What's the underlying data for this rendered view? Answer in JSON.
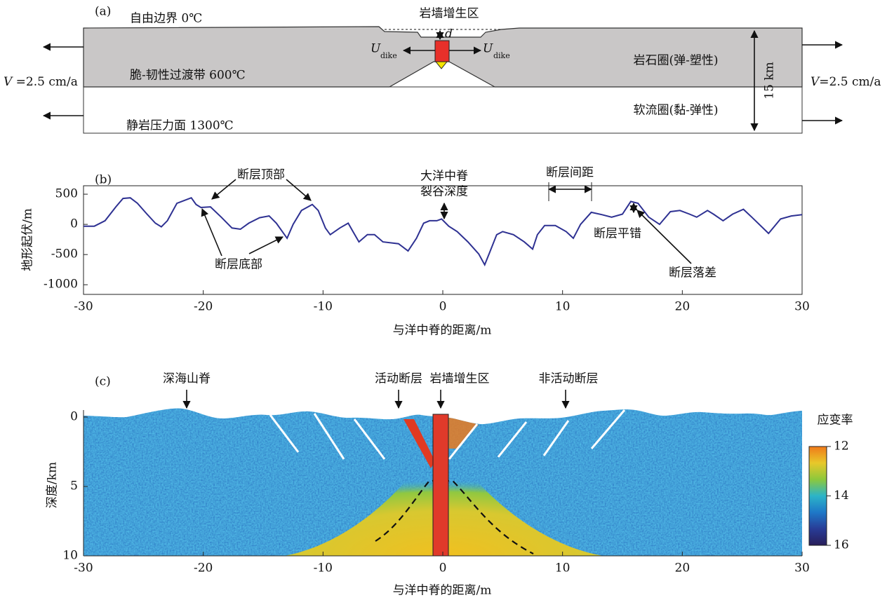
{
  "diagram": {
    "label": "(a)",
    "free_boundary": "自由边界 0℃",
    "dike_zone": "岩墙增生区",
    "d": "d",
    "u_left": "U",
    "u_left_sub": "dike",
    "u_right": "U",
    "u_right_sub": "dike",
    "lithosphere": "岩石圈(弹-塑性)",
    "bdt": "脆-韧性过渡带 600℃",
    "v_left_symbol": "V",
    "v_left_value": " =2.5 cm/a",
    "v_right_symbol": "V",
    "v_right_value": "=2.5 cm/a",
    "thickness": "15 km",
    "asthenosphere": "软流圈(黏-弹性)",
    "lithostatic": "静岩压力面 1300℃"
  },
  "chart_data": [
    {
      "type": "line",
      "panel_label": "(b)",
      "xlabel": "与洋中脊的距离/m",
      "ylabel": "地形起伏/m",
      "xlim": [
        -30,
        30
      ],
      "xticks": [
        -30,
        -20,
        -10,
        0,
        10,
        20,
        30
      ],
      "ylim": [
        -1160,
        640
      ],
      "yticks": [
        -1000,
        -500,
        0,
        500
      ],
      "color": "#2e3192",
      "annotations": [
        "断层顶部",
        "断层底部",
        "大洋中脊",
        "裂谷深度",
        "断层间距",
        "断层平错",
        "断层落差"
      ],
      "x": [
        -30,
        -29.1,
        -28.2,
        -27.3,
        -26.7,
        -26.1,
        -25.5,
        -24.7,
        -24,
        -23.5,
        -23,
        -22.2,
        -21.8,
        -21,
        -20.6,
        -20.2,
        -19.4,
        -18.5,
        -17.6,
        -16.9,
        -16.2,
        -15.3,
        -14.5,
        -13.9,
        -13,
        -12.5,
        -11.8,
        -10.9,
        -10.4,
        -9.8,
        -9.4,
        -8.6,
        -7.9,
        -7.5,
        -7,
        -6.3,
        -5.7,
        -5,
        -3.7,
        -2.9,
        -2.2,
        -1.6,
        -1.1,
        -0.5,
        -0.1,
        0.5,
        1.2,
        2.1,
        3,
        3.5,
        3.9,
        4.5,
        5,
        5.9,
        6.8,
        7.5,
        7.9,
        8.5,
        9.4,
        10.3,
        10.9,
        11.5,
        12.4,
        13.3,
        14.1,
        15,
        15.7,
        16.3,
        17.2,
        18.1,
        19,
        19.8,
        20.6,
        21.2,
        22.1,
        22.6,
        23.4,
        24.2,
        25.1,
        25.8,
        27.2,
        28.2,
        29.1,
        30
      ],
      "values": [
        -30,
        -30,
        60,
        290,
        430,
        440,
        350,
        170,
        20,
        -40,
        60,
        350,
        380,
        440,
        330,
        280,
        290,
        120,
        -60,
        -80,
        20,
        110,
        140,
        20,
        -230,
        0,
        230,
        330,
        230,
        -60,
        -170,
        -60,
        20,
        -120,
        -290,
        -170,
        -170,
        -290,
        -320,
        -440,
        -230,
        20,
        60,
        60,
        90,
        -30,
        -120,
        -290,
        -490,
        -670,
        -470,
        -170,
        -120,
        -170,
        -290,
        -410,
        -170,
        -20,
        -20,
        -120,
        -230,
        0,
        200,
        160,
        120,
        170,
        380,
        350,
        120,
        0,
        210,
        230,
        170,
        120,
        230,
        170,
        60,
        170,
        250,
        120,
        -150,
        90,
        140,
        160
      ]
    },
    {
      "type": "heatmap",
      "panel_label": "(c)",
      "xlabel": "与洋中脊的距离/m",
      "ylabel": "深度/km",
      "xlim": [
        -30,
        30
      ],
      "xticks": [
        -30,
        -20,
        -10,
        0,
        10,
        20,
        30
      ],
      "ylim": [
        10,
        0
      ],
      "yticks": [
        0,
        5,
        10
      ],
      "annotations": [
        "深海山脊",
        "活动断层",
        "岩墙增生区",
        "非活动断层"
      ],
      "colorbar": {
        "label": "应变率",
        "lim": [
          12,
          16
        ],
        "ticks": [
          12,
          14,
          16
        ],
        "colors": [
          "#f07a1a",
          "#e8c82a",
          "#8cc83c",
          "#2cb4c8",
          "#1e78c8",
          "#283c96",
          "#281e5a"
        ]
      }
    }
  ]
}
